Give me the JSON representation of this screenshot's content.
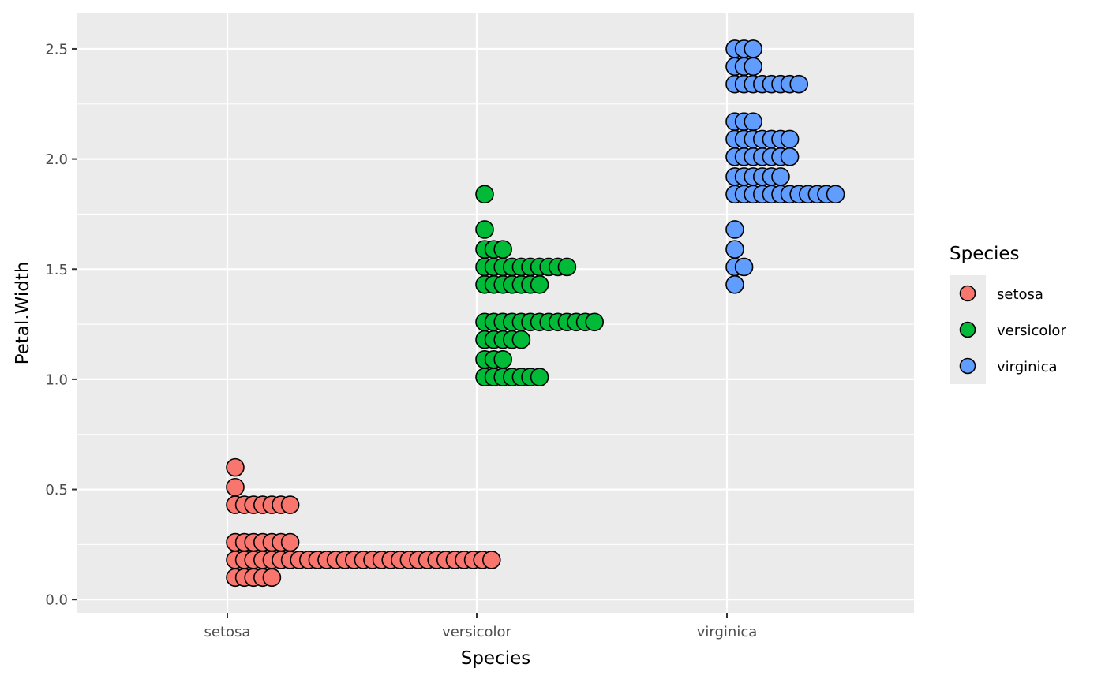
{
  "chart_data": {
    "type": "scatter",
    "subtype": "dotplot",
    "title": "",
    "xlabel": "Species",
    "ylabel": "Petal.Width",
    "categories": [
      "setosa",
      "versicolor",
      "virginica"
    ],
    "ylim": [
      -0.05,
      2.65
    ],
    "yticks": [
      0.0,
      0.5,
      1.0,
      1.5,
      2.0,
      2.5
    ],
    "ytick_labels": [
      "0.0",
      "0.5",
      "1.0",
      "1.5",
      "2.0",
      "2.5"
    ],
    "grid": true,
    "legend": {
      "title": "Species",
      "position": "right"
    },
    "series": [
      {
        "name": "setosa",
        "color": "#F8766D",
        "bins": [
          {
            "y": 0.1,
            "count": 5
          },
          {
            "y": 0.18,
            "count": 29
          },
          {
            "y": 0.26,
            "count": 7
          },
          {
            "y": 0.43,
            "count": 7
          },
          {
            "y": 0.51,
            "count": 1
          },
          {
            "y": 0.6,
            "count": 1
          }
        ]
      },
      {
        "name": "versicolor",
        "color": "#00BA38",
        "bins": [
          {
            "y": 1.01,
            "count": 7
          },
          {
            "y": 1.09,
            "count": 3
          },
          {
            "y": 1.18,
            "count": 5
          },
          {
            "y": 1.26,
            "count": 13
          },
          {
            "y": 1.43,
            "count": 7
          },
          {
            "y": 1.51,
            "count": 10
          },
          {
            "y": 1.59,
            "count": 3
          },
          {
            "y": 1.68,
            "count": 1
          },
          {
            "y": 1.84,
            "count": 1
          }
        ]
      },
      {
        "name": "virginica",
        "color": "#619CFF",
        "bins": [
          {
            "y": 1.43,
            "count": 1
          },
          {
            "y": 1.51,
            "count": 2
          },
          {
            "y": 1.59,
            "count": 1
          },
          {
            "y": 1.68,
            "count": 1
          },
          {
            "y": 1.84,
            "count": 12
          },
          {
            "y": 1.92,
            "count": 6
          },
          {
            "y": 2.01,
            "count": 7
          },
          {
            "y": 2.09,
            "count": 7
          },
          {
            "y": 2.17,
            "count": 3
          },
          {
            "y": 2.34,
            "count": 8
          },
          {
            "y": 2.42,
            "count": 3
          },
          {
            "y": 2.5,
            "count": 3
          }
        ]
      }
    ]
  },
  "colors": {
    "panel_background": "#EBEBEB",
    "grid_major": "#FFFFFF",
    "point_outline": "#000000"
  }
}
